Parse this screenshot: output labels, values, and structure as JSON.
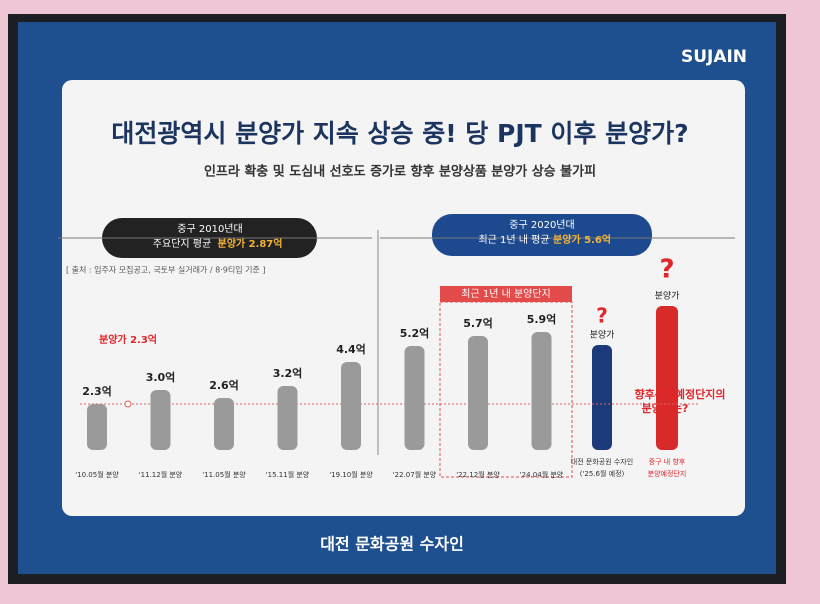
{
  "brand": "SUJAIN",
  "footer": "대전 문화공원 수자인",
  "chart_data": {
    "type": "bar",
    "title": "대전광역시 분양가 지속 상승 중! 당 PJT 이후 분양가?",
    "subtitle": "인프라 확충 및 도심내 선호도 증가로 향후 분양상품 분양가 상승 불가피",
    "badges": [
      {
        "title": "중구 2010년대",
        "lines": [
          "주요단지 평균",
          "분양가 2.87억"
        ]
      },
      {
        "title": "중구 2020년대",
        "lines": [
          "최근 1년 내 평균",
          "분양가 5.6억"
        ]
      }
    ],
    "source": "[ 출처 : 입주자 모집공고, 국토부 실거래가 / 8·9티입 기준 ]",
    "highlight_label": "최근 1년 내 분양단지",
    "ref_line": {
      "value": 2.3,
      "label": "분양가 2.3억"
    },
    "categories": [
      "'10.05월 분양",
      "'11.12월 분양",
      "'11.05월 분양",
      "'15.11월 분양",
      "'19.10월 분양",
      "'22.07월 분양",
      "'22.12월 분양",
      "'24.04월 분양"
    ],
    "values": [
      2.3,
      3.0,
      2.6,
      3.2,
      4.4,
      5.2,
      5.7,
      5.9
    ],
    "value_labels": [
      "2.3억",
      "3.0억",
      "2.6억",
      "3.2억",
      "4.4억",
      "5.2억",
      "5.7억",
      "5.9억"
    ],
    "color": "#9a9a9a",
    "ylim": [
      0,
      8
    ],
    "future": [
      {
        "label": "분양가",
        "mark": "?",
        "category": "대전 문화공원 수자인",
        "date": "('25.6월 예정)"
      },
      {
        "label": "분양가",
        "mark": "?",
        "category": "중구 내 향후",
        "date": "분양예정단지"
      }
    ],
    "callout": [
      "향후분양예정단지의",
      "분양가는?"
    ]
  }
}
